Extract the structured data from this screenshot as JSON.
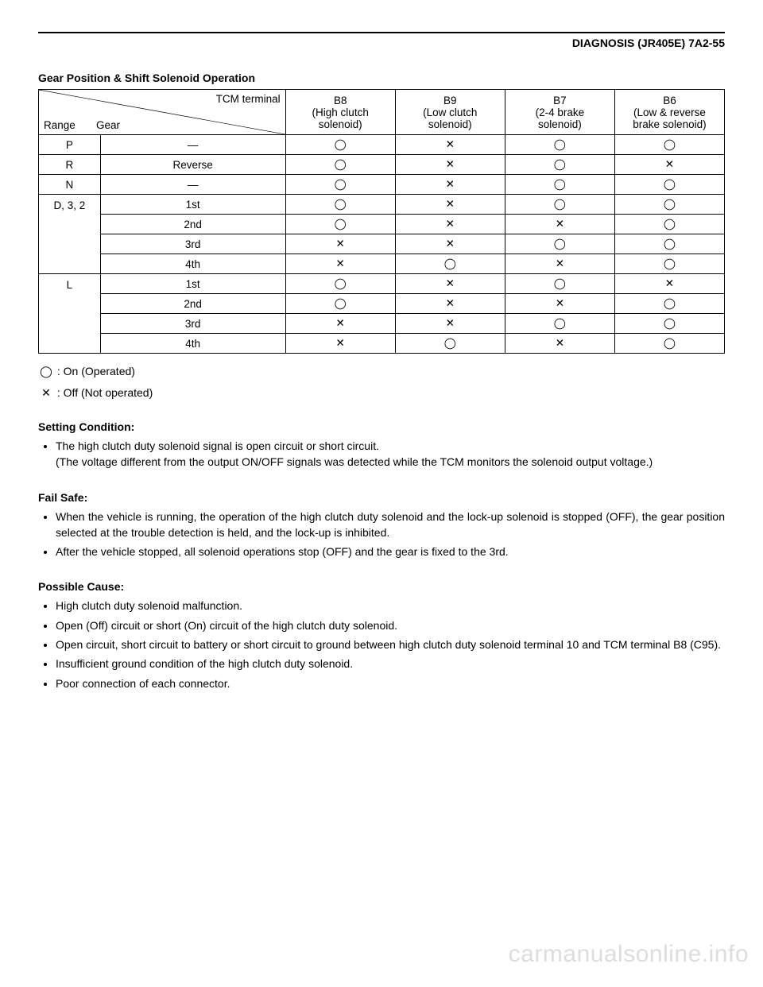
{
  "header": {
    "right": "DIAGNOSIS (JR405E)  7A2-55"
  },
  "table": {
    "title": "Gear Position & Shift Solenoid Operation",
    "diag": {
      "top": "TCM terminal",
      "left1": "Range",
      "left2": "Gear"
    },
    "cols": {
      "b8": {
        "l1": "B8",
        "l2": "(High clutch",
        "l3": "solenoid)"
      },
      "b9": {
        "l1": "B9",
        "l2": "(Low clutch",
        "l3": "solenoid)"
      },
      "b7": {
        "l1": "B7",
        "l2": "(2-4 brake",
        "l3": "solenoid)"
      },
      "b6": {
        "l1": "B6",
        "l2": "(Low & reverse",
        "l3": "brake solenoid)"
      }
    },
    "symbols": {
      "on": "◯",
      "off": "✕",
      "dash": "—"
    },
    "rows": [
      {
        "range": "P",
        "gear": "—",
        "b8": "on",
        "b9": "off",
        "b7": "on",
        "b8x": "on",
        "b6": "on"
      },
      {
        "range": "R",
        "gear": "Reverse",
        "b8": "on",
        "b9": "off",
        "b7": "on",
        "b6": "off"
      },
      {
        "range": "N",
        "gear": "—",
        "b8": "on",
        "b9": "off",
        "b7": "on",
        "b6": "on"
      },
      {
        "range": "D, 3, 2",
        "gear": "1st",
        "b8": "on",
        "b9": "off",
        "b7": "on",
        "b6": "on",
        "rangeRowspan": 4
      },
      {
        "range": "",
        "gear": "2nd",
        "b8": "on",
        "b9": "off",
        "b7": "off",
        "b6": "on"
      },
      {
        "range": "",
        "gear": "3rd",
        "b8": "off",
        "b9": "off",
        "b7": "on",
        "b6": "on"
      },
      {
        "range": "",
        "gear": "4th",
        "b8": "off",
        "b9": "on",
        "b7": "off",
        "b6": "on"
      },
      {
        "range": "L",
        "gear": "1st",
        "b8": "on",
        "b9": "off",
        "b7": "on",
        "b6": "off",
        "rangeRowspan": 4
      },
      {
        "range": "",
        "gear": "2nd",
        "b8": "on",
        "b9": "off",
        "b7": "off",
        "b6": "on"
      },
      {
        "range": "",
        "gear": "3rd",
        "b8": "off",
        "b9": "off",
        "b7": "on",
        "b6": "on"
      },
      {
        "range": "",
        "gear": "4th",
        "b8": "off",
        "b9": "on",
        "b7": "off",
        "b6": "on"
      }
    ]
  },
  "legend": {
    "on": ": On (Operated)",
    "off": ": Off (Not operated)"
  },
  "setting": {
    "heading": "Setting Condition:",
    "item1": "The high clutch duty solenoid signal is open circuit or short circuit.",
    "item1b": "(The voltage different from the output ON/OFF signals was detected while the TCM monitors the solenoid output voltage.)"
  },
  "failsafe": {
    "heading": "Fail Safe:",
    "item1": "When the vehicle is running, the operation of the high clutch duty solenoid and the lock-up solenoid is stopped (OFF), the gear position selected at the trouble detection is held, and the lock-up is inhibited.",
    "item2": "After the vehicle stopped, all solenoid operations stop (OFF) and the gear is fixed to the 3rd."
  },
  "cause": {
    "heading": "Possible Cause:",
    "item1": "High clutch duty solenoid malfunction.",
    "item2": "Open (Off) circuit or short (On) circuit of the high clutch duty solenoid.",
    "item3": "Open circuit, short circuit to battery or short circuit to ground between high clutch duty solenoid terminal 10 and TCM terminal B8 (C95).",
    "item4": "Insufficient ground condition of the high clutch duty solenoid.",
    "item5": "Poor connection of each connector."
  },
  "watermark": "carmanualsonline.info"
}
